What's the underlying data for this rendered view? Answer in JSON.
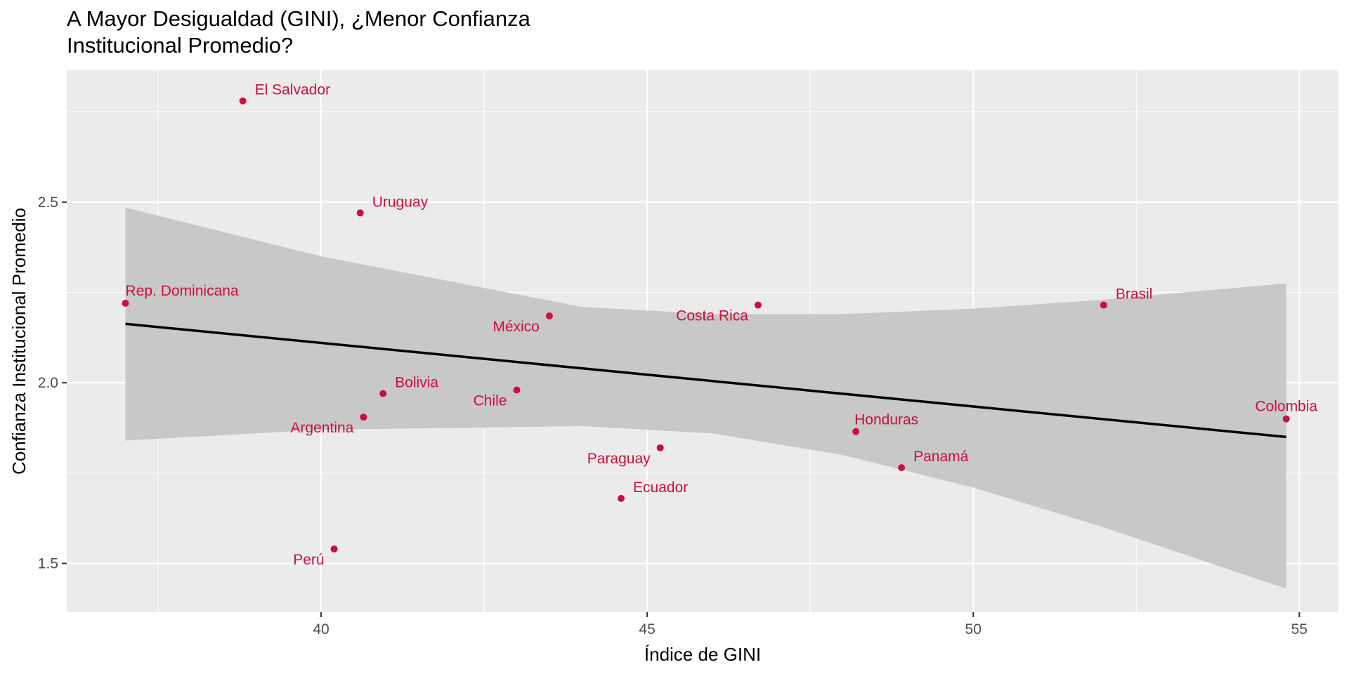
{
  "chart_data": {
    "type": "scatter",
    "title_line1": "A Mayor Desigualdad (GINI), ¿Menor Confianza",
    "title_line2": "Institucional Promedio?",
    "xlabel": "Índice de GINI",
    "ylabel": "Confianza Institucional Promedio",
    "xlim": [
      36.1,
      55.6
    ],
    "ylim": [
      1.365,
      2.865
    ],
    "x_ticks": [
      40,
      45,
      50,
      55
    ],
    "y_ticks": [
      1.5,
      2.0,
      2.5
    ],
    "x_tick_labels": [
      "40",
      "45",
      "50",
      "55"
    ],
    "y_tick_labels": [
      "1.5",
      "2.0",
      "2.5"
    ],
    "grid": true,
    "colors": {
      "panel": "#ebebeb",
      "grid": "#ffffff",
      "point": "#c8103e",
      "band": "#c6c6c6",
      "line": "#000000"
    },
    "points": [
      {
        "name": "El Salvador",
        "x": 38.8,
        "y": 2.78,
        "anchor": "start",
        "label_pos": "upper-right"
      },
      {
        "name": "Uruguay",
        "x": 40.6,
        "y": 2.47,
        "anchor": "start",
        "label_pos": "upper-right"
      },
      {
        "name": "Rep. Dominicana",
        "x": 37.0,
        "y": 2.22,
        "anchor": "start",
        "label_pos": "above"
      },
      {
        "name": "México",
        "x": 43.5,
        "y": 2.185,
        "anchor": "end",
        "label_pos": "lower-left"
      },
      {
        "name": "Costa Rica",
        "x": 46.7,
        "y": 2.215,
        "anchor": "end",
        "label_pos": "lower-left"
      },
      {
        "name": "Brasil",
        "x": 52.0,
        "y": 2.215,
        "anchor": "start",
        "label_pos": "upper-right"
      },
      {
        "name": "Bolivia",
        "x": 40.95,
        "y": 1.97,
        "anchor": "start",
        "label_pos": "upper-right"
      },
      {
        "name": "Chile",
        "x": 43.0,
        "y": 1.98,
        "anchor": "end",
        "label_pos": "lower-left"
      },
      {
        "name": "Argentina",
        "x": 40.65,
        "y": 1.905,
        "anchor": "end",
        "label_pos": "lower-left"
      },
      {
        "name": "Colombia",
        "x": 54.8,
        "y": 1.9,
        "anchor": "middle",
        "label_pos": "above"
      },
      {
        "name": "Honduras",
        "x": 48.2,
        "y": 1.865,
        "anchor": "start",
        "label_pos": "above-right"
      },
      {
        "name": "Paraguay",
        "x": 45.2,
        "y": 1.82,
        "anchor": "end",
        "label_pos": "lower-left"
      },
      {
        "name": "Panamá",
        "x": 48.9,
        "y": 1.765,
        "anchor": "start",
        "label_pos": "upper-right"
      },
      {
        "name": "Ecuador",
        "x": 44.6,
        "y": 1.68,
        "anchor": "start",
        "label_pos": "upper-right"
      },
      {
        "name": "Perú",
        "x": 40.2,
        "y": 1.54,
        "anchor": "end",
        "label_pos": "lower-left"
      }
    ],
    "regression": {
      "x": [
        37.0,
        54.8
      ],
      "y": [
        2.163,
        1.85
      ]
    },
    "confidence_band": {
      "x": [
        37.0,
        40.0,
        44.0,
        46.0,
        48.0,
        50.0,
        52.0,
        54.8
      ],
      "upper": [
        2.485,
        2.35,
        2.21,
        2.19,
        2.19,
        2.205,
        2.23,
        2.275
      ],
      "lower": [
        1.84,
        1.87,
        1.88,
        1.86,
        1.8,
        1.71,
        1.6,
        1.43
      ]
    }
  }
}
